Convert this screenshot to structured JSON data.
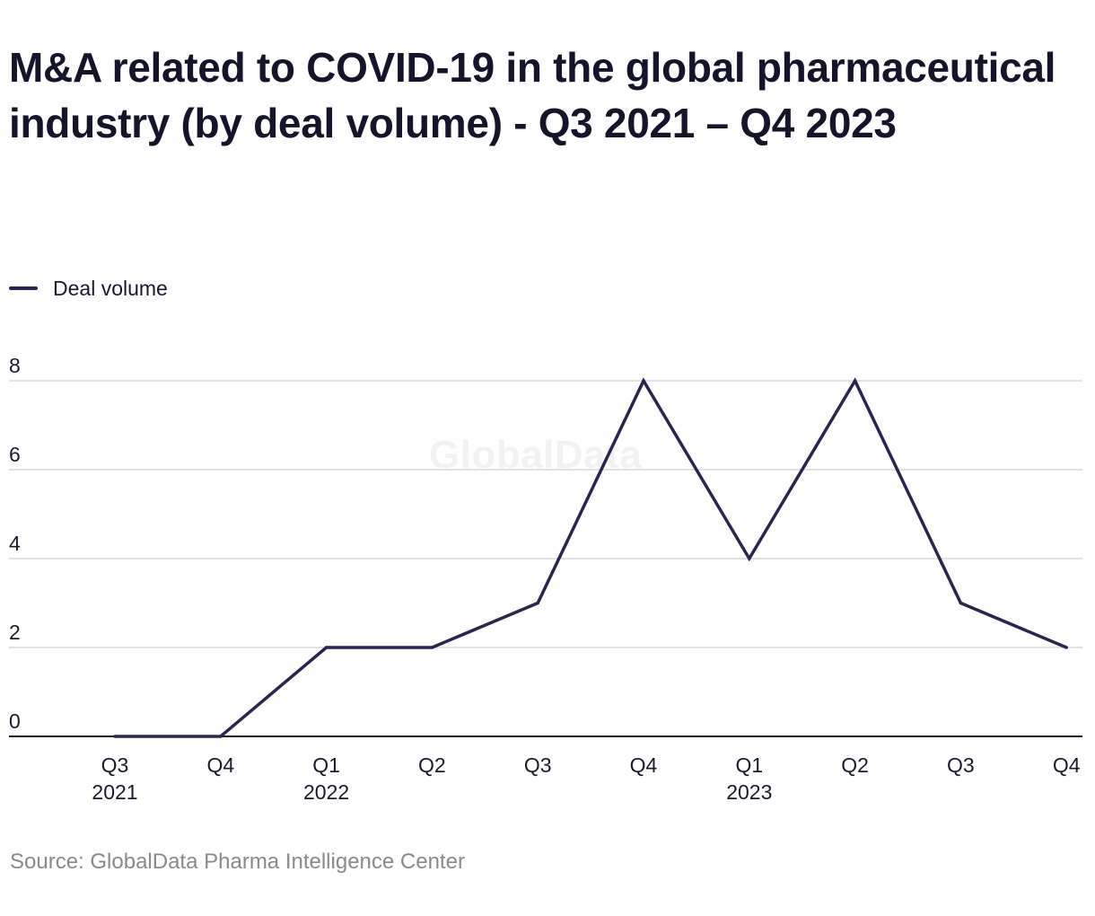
{
  "title": "M&A related to COVID-19 in the global pharmaceutical industry (by deal volume) - Q3 2021 – Q4 2023",
  "watermark": "GlobalData",
  "source": "Source: GlobalData Pharma Intelligence Center",
  "colors": {
    "series": "#2e2250",
    "grid": "#d9d9d9",
    "axis": "#1a1a2e"
  },
  "chart_data": {
    "type": "line",
    "title": "M&A related to COVID-19 in the global pharmaceutical industry (by deal volume) - Q3 2021 – Q4 2023",
    "xlabel": "",
    "ylabel": "",
    "categories": [
      {
        "quarter": "Q3",
        "year": "2021"
      },
      {
        "quarter": "Q4",
        "year": ""
      },
      {
        "quarter": "Q1",
        "year": "2022"
      },
      {
        "quarter": "Q2",
        "year": ""
      },
      {
        "quarter": "Q3",
        "year": ""
      },
      {
        "quarter": "Q4",
        "year": ""
      },
      {
        "quarter": "Q1",
        "year": "2023"
      },
      {
        "quarter": "Q2",
        "year": ""
      },
      {
        "quarter": "Q3",
        "year": ""
      },
      {
        "quarter": "Q4",
        "year": ""
      }
    ],
    "series": [
      {
        "name": "Deal volume",
        "values": [
          0,
          0,
          2,
          2,
          3,
          8,
          4,
          8,
          3,
          2
        ]
      }
    ],
    "yticks": [
      0,
      2,
      4,
      6,
      8
    ],
    "ylim": [
      0,
      8
    ],
    "grid": true,
    "legend": "top-left"
  }
}
